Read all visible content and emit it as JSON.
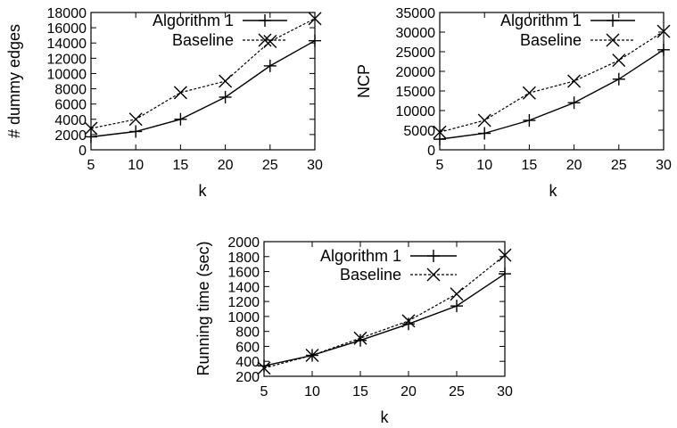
{
  "chart_data": [
    {
      "type": "line",
      "xlabel": "k",
      "ylabel": "# dummy edges",
      "x": [
        5,
        10,
        15,
        20,
        25,
        30
      ],
      "xticks": [
        "5",
        "10",
        "15",
        "20",
        "25",
        "30"
      ],
      "xlim": [
        5,
        30
      ],
      "ylim": [
        0,
        18000
      ],
      "yticks": [
        "0",
        "2000",
        "4000",
        "6000",
        "8000",
        "10000",
        "12000",
        "14000",
        "16000",
        "18000"
      ],
      "grid": false,
      "legend_position": "top-left",
      "series": [
        {
          "name": "Algorithm 1",
          "style": "solid",
          "marker": "plus",
          "values": [
            1700,
            2400,
            4000,
            6900,
            11000,
            14300
          ]
        },
        {
          "name": "Baseline",
          "style": "dashed",
          "marker": "x",
          "values": [
            2800,
            4000,
            7500,
            9000,
            14200,
            17200
          ]
        }
      ]
    },
    {
      "type": "line",
      "xlabel": "k",
      "ylabel": "NCP",
      "x": [
        5,
        10,
        15,
        20,
        25,
        30
      ],
      "xticks": [
        "5",
        "10",
        "15",
        "20",
        "25",
        "30"
      ],
      "xlim": [
        5,
        30
      ],
      "ylim": [
        0,
        35000
      ],
      "yticks": [
        "0",
        "5000",
        "10000",
        "15000",
        "20000",
        "25000",
        "30000",
        "35000"
      ],
      "grid": false,
      "legend_position": "top-left",
      "series": [
        {
          "name": "Algorithm 1",
          "style": "solid",
          "marker": "plus",
          "values": [
            2700,
            4200,
            7500,
            12000,
            18000,
            25500
          ]
        },
        {
          "name": "Baseline",
          "style": "dashed",
          "marker": "x",
          "values": [
            4500,
            7500,
            14500,
            17500,
            22800,
            30200
          ]
        }
      ]
    },
    {
      "type": "line",
      "xlabel": "k",
      "ylabel": "Running time (sec)",
      "x": [
        5,
        10,
        15,
        20,
        25,
        30
      ],
      "xticks": [
        "5",
        "10",
        "15",
        "20",
        "25",
        "30"
      ],
      "xlim": [
        5,
        30
      ],
      "ylim": [
        200,
        2000
      ],
      "yticks": [
        "200",
        "400",
        "600",
        "800",
        "1000",
        "1200",
        "1400",
        "1600",
        "1800",
        "2000"
      ],
      "grid": false,
      "legend_position": "top-left",
      "series": [
        {
          "name": "Algorithm 1",
          "style": "solid",
          "marker": "plus",
          "values": [
            340,
            480,
            680,
            900,
            1140,
            1570
          ]
        },
        {
          "name": "Baseline",
          "style": "dashed",
          "marker": "x",
          "values": [
            310,
            480,
            710,
            940,
            1300,
            1820
          ]
        }
      ]
    }
  ]
}
